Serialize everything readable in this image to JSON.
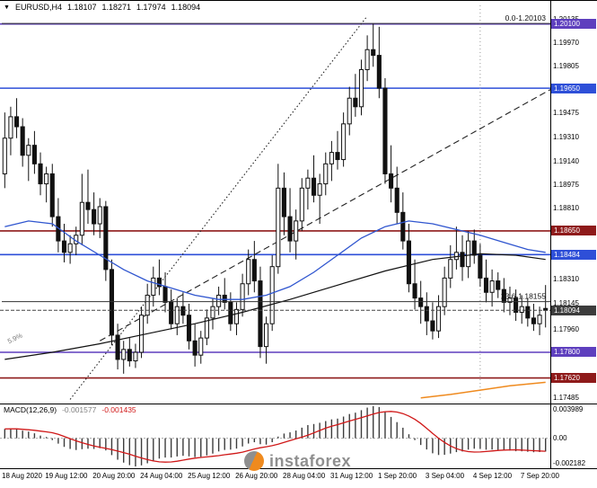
{
  "header": {
    "marker": "▼",
    "symbol": "EURUSD,H4",
    "open": "1.18107",
    "high": "1.18271",
    "low": "1.17974",
    "close": "1.18094"
  },
  "watermark": {
    "text": "instaforex"
  },
  "colors": {
    "bull_candle": "#ffffff",
    "bear_candle": "#111111",
    "candle_outline": "#111111",
    "macd_signal": "#d01818",
    "macd_histogram": "#3c3c3c",
    "watermark_gray": "#8f8f8f",
    "watermark_orange": "#ef8a1e"
  },
  "chart_data": {
    "type": "candlestick",
    "title": "EURUSD,H4",
    "symbol": "EURUSD",
    "timeframe": "H4",
    "ylim": [
      1.1746,
      1.2023
    ],
    "x_labels": [
      "18 Aug 2020",
      "19 Aug 12:00",
      "20 Aug 20:00",
      "24 Aug 04:00",
      "25 Aug 12:00",
      "26 Aug 20:00",
      "28 Aug 04:00",
      "31 Aug 12:00",
      "1 Sep 20:00",
      "3 Sep 04:00",
      "4 Sep 12:00",
      "7 Sep 20:00"
    ],
    "label_every": 8,
    "y_ticks": [
      "1.20135",
      "1.19970",
      "1.19805",
      "1.19475",
      "1.19310",
      "1.19140",
      "1.18975",
      "1.18810",
      "1.18310",
      "1.18145",
      "1.17960",
      "1.17485"
    ],
    "levels": [
      {
        "price": 1.201,
        "label": "1.20100",
        "color": "#5e3fbe"
      },
      {
        "price": 1.1965,
        "label": "1.19650",
        "color": "#2e4fd8"
      },
      {
        "price": 1.1865,
        "label": "1.18650",
        "color": "#8e1a1a"
      },
      {
        "price": 1.18484,
        "label": "1.18484",
        "color": "#2e4fd8"
      },
      {
        "price": 1.178,
        "label": "1.17800",
        "color": "#5e3fbe"
      },
      {
        "price": 1.1762,
        "label": "1.17620",
        "color": "#8e1a1a"
      }
    ],
    "current_price": {
      "price": 1.18094,
      "label": "1.18094",
      "color": "#3c3c3c"
    },
    "fib_lines": [
      {
        "price": 1.20103,
        "label": "0.0-1.20103"
      },
      {
        "price": 1.18155,
        "label": "23.6-1.18155"
      }
    ],
    "trendlines": [
      {
        "style": "dotted",
        "from": [
          11,
          1.1747
        ],
        "to": [
          61,
          1.20155
        ]
      },
      {
        "style": "dashed",
        "from": [
          16,
          1.1788
        ],
        "to": [
          91.8,
          1.1964
        ]
      }
    ],
    "vline": {
      "style": "dotted",
      "i": 80
    },
    "ma_lines": [
      {
        "name": "ma-blue-line",
        "color": "#2f55cf",
        "width": 1.3,
        "points": [
          [
            0,
            1.1868
          ],
          [
            4,
            1.1872
          ],
          [
            8,
            1.187
          ],
          [
            12,
            1.1858
          ],
          [
            16,
            1.1848
          ],
          [
            20,
            1.1838
          ],
          [
            24,
            1.183
          ],
          [
            28,
            1.1825
          ],
          [
            32,
            1.182
          ],
          [
            36,
            1.1817
          ],
          [
            40,
            1.1817
          ],
          [
            44,
            1.182
          ],
          [
            48,
            1.1826
          ],
          [
            52,
            1.1836
          ],
          [
            56,
            1.1848
          ],
          [
            60,
            1.186
          ],
          [
            64,
            1.1868
          ],
          [
            68,
            1.1872
          ],
          [
            72,
            1.187
          ],
          [
            76,
            1.1866
          ],
          [
            80,
            1.1862
          ],
          [
            84,
            1.1857
          ],
          [
            88,
            1.1852
          ],
          [
            91,
            1.185
          ]
        ]
      },
      {
        "name": "ma-dark-line",
        "color": "#111111",
        "width": 1.2,
        "points": [
          [
            0,
            1.1775
          ],
          [
            8,
            1.178
          ],
          [
            16,
            1.1786
          ],
          [
            24,
            1.1793
          ],
          [
            32,
            1.18
          ],
          [
            40,
            1.1808
          ],
          [
            48,
            1.1817
          ],
          [
            56,
            1.1827
          ],
          [
            64,
            1.1837
          ],
          [
            72,
            1.1845
          ],
          [
            80,
            1.1849
          ],
          [
            86,
            1.1848
          ],
          [
            91,
            1.1845
          ]
        ]
      },
      {
        "name": "ma-orange-line",
        "color": "#ef8a1e",
        "width": 1.5,
        "points": [
          [
            70,
            1.1748
          ],
          [
            75,
            1.17505
          ],
          [
            80,
            1.17535
          ],
          [
            85,
            1.17565
          ],
          [
            91,
            1.1759
          ]
        ]
      }
    ],
    "annotations": [
      {
        "text": "5.9%",
        "i": 0.4,
        "price": 1.179
      }
    ],
    "macd": {
      "label": "MACD(12,26,9)",
      "value": "-0.001577",
      "signal_value": "-0.001435",
      "axis": [
        "0.003989",
        "0.00",
        "-0.002182"
      ],
      "params": [
        12,
        26,
        9
      ]
    },
    "candles": [
      [
        1.1905,
        1.1948,
        1.1895,
        1.193
      ],
      [
        1.193,
        1.1952,
        1.1918,
        1.1945
      ],
      [
        1.1945,
        1.1958,
        1.193,
        1.1938
      ],
      [
        1.1938,
        1.1944,
        1.191,
        1.1918
      ],
      [
        1.1918,
        1.193,
        1.19,
        1.1925
      ],
      [
        1.1925,
        1.1935,
        1.1905,
        1.1912
      ],
      [
        1.1912,
        1.192,
        1.189,
        1.1898
      ],
      [
        1.1898,
        1.191,
        1.1885,
        1.1905
      ],
      [
        1.1905,
        1.1912,
        1.1868,
        1.1875
      ],
      [
        1.1875,
        1.1888,
        1.185,
        1.1858
      ],
      [
        1.1858,
        1.187,
        1.1843,
        1.185
      ],
      [
        1.185,
        1.1862,
        1.1842,
        1.1856
      ],
      [
        1.1856,
        1.1868,
        1.1848,
        1.1862
      ],
      [
        1.1862,
        1.1905,
        1.1855,
        1.1885
      ],
      [
        1.1885,
        1.1908,
        1.187,
        1.188
      ],
      [
        1.188,
        1.1892,
        1.1862,
        1.187
      ],
      [
        1.187,
        1.1888,
        1.186,
        1.1882
      ],
      [
        1.1882,
        1.1886,
        1.183,
        1.1838
      ],
      [
        1.1838,
        1.1845,
        1.1785,
        1.1792
      ],
      [
        1.1792,
        1.18,
        1.1768,
        1.1775
      ],
      [
        1.1775,
        1.1788,
        1.1765,
        1.1782
      ],
      [
        1.1782,
        1.179,
        1.177,
        1.1774
      ],
      [
        1.1774,
        1.1786,
        1.1769,
        1.178
      ],
      [
        1.178,
        1.1812,
        1.1776,
        1.1806
      ],
      [
        1.1806,
        1.1828,
        1.18,
        1.182
      ],
      [
        1.182,
        1.184,
        1.1812,
        1.1832
      ],
      [
        1.1832,
        1.1845,
        1.182,
        1.1826
      ],
      [
        1.1826,
        1.1836,
        1.1808,
        1.1815
      ],
      [
        1.1815,
        1.1824,
        1.1796,
        1.18
      ],
      [
        1.18,
        1.1818,
        1.1792,
        1.1812
      ],
      [
        1.1812,
        1.1822,
        1.18,
        1.1806
      ],
      [
        1.1806,
        1.1814,
        1.1782,
        1.1788
      ],
      [
        1.1788,
        1.18,
        1.177,
        1.1778
      ],
      [
        1.1778,
        1.1795,
        1.1772,
        1.179
      ],
      [
        1.179,
        1.181,
        1.1785,
        1.1804
      ],
      [
        1.1804,
        1.1818,
        1.1796,
        1.1812
      ],
      [
        1.1812,
        1.1826,
        1.1806,
        1.182
      ],
      [
        1.182,
        1.1832,
        1.181,
        1.1815
      ],
      [
        1.1815,
        1.1822,
        1.1795,
        1.18
      ],
      [
        1.18,
        1.1815,
        1.1792,
        1.181
      ],
      [
        1.181,
        1.1835,
        1.1805,
        1.1828
      ],
      [
        1.1828,
        1.1852,
        1.182,
        1.1845
      ],
      [
        1.1845,
        1.1858,
        1.1822,
        1.183
      ],
      [
        1.183,
        1.184,
        1.1776,
        1.1784
      ],
      [
        1.1784,
        1.1805,
        1.1772,
        1.18
      ],
      [
        1.18,
        1.1848,
        1.1795,
        1.184
      ],
      [
        1.184,
        1.1912,
        1.1835,
        1.1895
      ],
      [
        1.1895,
        1.1906,
        1.1862,
        1.1875
      ],
      [
        1.1875,
        1.1895,
        1.185,
        1.1858
      ],
      [
        1.1858,
        1.188,
        1.1845,
        1.1872
      ],
      [
        1.1872,
        1.1902,
        1.1865,
        1.1895
      ],
      [
        1.1895,
        1.1908,
        1.188,
        1.1902
      ],
      [
        1.1902,
        1.1918,
        1.1885,
        1.189
      ],
      [
        1.189,
        1.1905,
        1.187,
        1.1898
      ],
      [
        1.1898,
        1.192,
        1.189,
        1.1912
      ],
      [
        1.1912,
        1.1928,
        1.19,
        1.192
      ],
      [
        1.192,
        1.1935,
        1.1908,
        1.1915
      ],
      [
        1.1915,
        1.1948,
        1.191,
        1.194
      ],
      [
        1.194,
        1.1966,
        1.1932,
        1.1958
      ],
      [
        1.1958,
        1.1975,
        1.1945,
        1.1952
      ],
      [
        1.1952,
        1.1985,
        1.1946,
        1.1978
      ],
      [
        1.1978,
        1.2002,
        1.197,
        1.1992
      ],
      [
        1.1992,
        1.20103,
        1.198,
        1.1988
      ],
      [
        1.1988,
        1.2008,
        1.1958,
        1.1965
      ],
      [
        1.1965,
        1.1972,
        1.1898,
        1.1905
      ],
      [
        1.1905,
        1.1925,
        1.1885,
        1.1895
      ],
      [
        1.1895,
        1.191,
        1.187,
        1.1878
      ],
      [
        1.1878,
        1.1892,
        1.1852,
        1.1858
      ],
      [
        1.1858,
        1.187,
        1.1822,
        1.1828
      ],
      [
        1.1828,
        1.1845,
        1.181,
        1.1818
      ],
      [
        1.1818,
        1.183,
        1.18,
        1.1812
      ],
      [
        1.1812,
        1.1822,
        1.1792,
        1.1802
      ],
      [
        1.1802,
        1.1815,
        1.1789,
        1.1795
      ],
      [
        1.1795,
        1.182,
        1.179,
        1.1812
      ],
      [
        1.1812,
        1.184,
        1.1806,
        1.1832
      ],
      [
        1.1832,
        1.1855,
        1.1825,
        1.1845
      ],
      [
        1.1845,
        1.1868,
        1.1838,
        1.185
      ],
      [
        1.185,
        1.1862,
        1.183,
        1.184
      ],
      [
        1.184,
        1.1865,
        1.1832,
        1.1858
      ],
      [
        1.1858,
        1.1866,
        1.1842,
        1.1848
      ],
      [
        1.1848,
        1.1856,
        1.1826,
        1.1832
      ],
      [
        1.1832,
        1.1845,
        1.1815,
        1.1822
      ],
      [
        1.1822,
        1.1838,
        1.1812,
        1.183
      ],
      [
        1.183,
        1.1836,
        1.1818,
        1.1824
      ],
      [
        1.1824,
        1.1832,
        1.1808,
        1.1815
      ],
      [
        1.1815,
        1.1826,
        1.1806,
        1.1818
      ],
      [
        1.1818,
        1.1824,
        1.1802,
        1.1808
      ],
      [
        1.1808,
        1.182,
        1.18,
        1.1812
      ],
      [
        1.1812,
        1.1818,
        1.1798,
        1.1804
      ],
      [
        1.1804,
        1.1814,
        1.1795,
        1.18
      ],
      [
        1.18,
        1.1812,
        1.1792,
        1.1806
      ],
      [
        1.18107,
        1.18271,
        1.17974,
        1.18094
      ]
    ]
  }
}
